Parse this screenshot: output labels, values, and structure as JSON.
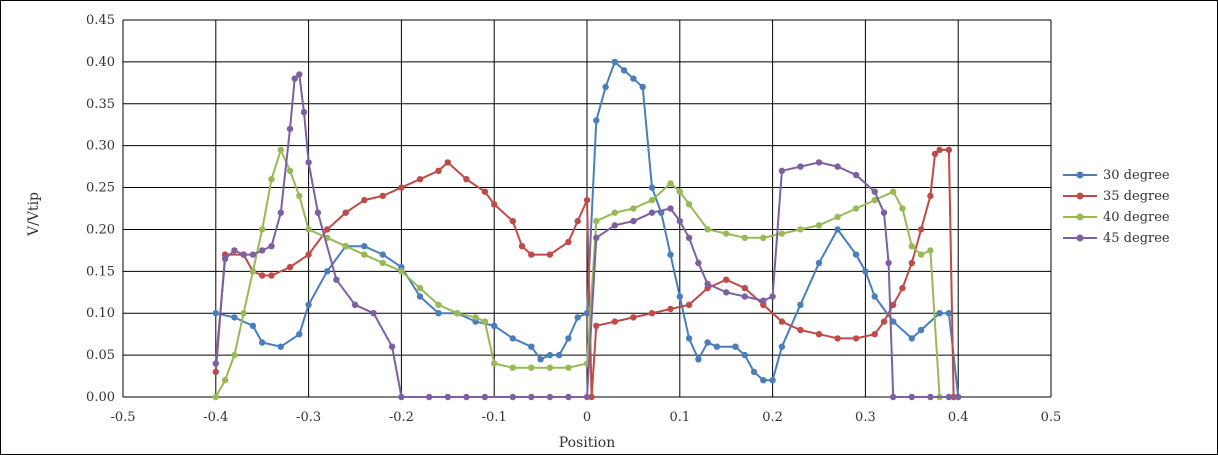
{
  "chart_data": {
    "type": "line",
    "title": "",
    "xlabel": "Position",
    "ylabel": "V/Vtip",
    "xlim": [
      -0.5,
      0.5
    ],
    "ylim": [
      0,
      0.45
    ],
    "grid": true,
    "legend_position": "right",
    "x_tick_labels": [
      "-0.5",
      "-0.4",
      "-0.3",
      "-0.2",
      "-0.1",
      "0",
      "0.1",
      "0.2",
      "0.3",
      "0.4",
      "0.5"
    ],
    "y_tick_labels": [
      "0.00",
      "0.05",
      "0.10",
      "0.15",
      "0.20",
      "0.25",
      "0.30",
      "0.35",
      "0.40",
      "0.45"
    ],
    "series": [
      {
        "name": "30 degree",
        "color": "#4a7ebb",
        "points": [
          [
            -0.4,
            0.1
          ],
          [
            -0.38,
            0.095
          ],
          [
            -0.36,
            0.085
          ],
          [
            -0.35,
            0.065
          ],
          [
            -0.33,
            0.06
          ],
          [
            -0.31,
            0.075
          ],
          [
            -0.3,
            0.11
          ],
          [
            -0.28,
            0.15
          ],
          [
            -0.26,
            0.18
          ],
          [
            -0.24,
            0.18
          ],
          [
            -0.22,
            0.17
          ],
          [
            -0.2,
            0.155
          ],
          [
            -0.18,
            0.12
          ],
          [
            -0.16,
            0.1
          ],
          [
            -0.14,
            0.1
          ],
          [
            -0.12,
            0.09
          ],
          [
            -0.1,
            0.085
          ],
          [
            -0.08,
            0.07
          ],
          [
            -0.06,
            0.06
          ],
          [
            -0.05,
            0.045
          ],
          [
            -0.04,
            0.05
          ],
          [
            -0.03,
            0.05
          ],
          [
            -0.02,
            0.07
          ],
          [
            -0.01,
            0.095
          ],
          [
            0.0,
            0.1
          ],
          [
            0.01,
            0.33
          ],
          [
            0.02,
            0.37
          ],
          [
            0.03,
            0.4
          ],
          [
            0.04,
            0.39
          ],
          [
            0.05,
            0.38
          ],
          [
            0.06,
            0.37
          ],
          [
            0.07,
            0.25
          ],
          [
            0.08,
            0.22
          ],
          [
            0.09,
            0.17
          ],
          [
            0.1,
            0.12
          ],
          [
            0.11,
            0.07
          ],
          [
            0.12,
            0.045
          ],
          [
            0.13,
            0.065
          ],
          [
            0.14,
            0.06
          ],
          [
            0.16,
            0.06
          ],
          [
            0.17,
            0.05
          ],
          [
            0.18,
            0.03
          ],
          [
            0.19,
            0.02
          ],
          [
            0.2,
            0.02
          ],
          [
            0.21,
            0.06
          ],
          [
            0.23,
            0.11
          ],
          [
            0.25,
            0.16
          ],
          [
            0.27,
            0.2
          ],
          [
            0.29,
            0.17
          ],
          [
            0.3,
            0.15
          ],
          [
            0.31,
            0.12
          ],
          [
            0.33,
            0.09
          ],
          [
            0.35,
            0.07
          ],
          [
            0.36,
            0.08
          ],
          [
            0.38,
            0.1
          ],
          [
            0.39,
            0.1
          ],
          [
            0.4,
            0.0
          ]
        ]
      },
      {
        "name": "35 degree",
        "color": "#be4b48",
        "points": [
          [
            -0.4,
            0.03
          ],
          [
            -0.39,
            0.17
          ],
          [
            -0.37,
            0.17
          ],
          [
            -0.36,
            0.15
          ],
          [
            -0.35,
            0.145
          ],
          [
            -0.34,
            0.145
          ],
          [
            -0.32,
            0.155
          ],
          [
            -0.3,
            0.17
          ],
          [
            -0.28,
            0.2
          ],
          [
            -0.26,
            0.22
          ],
          [
            -0.24,
            0.235
          ],
          [
            -0.22,
            0.24
          ],
          [
            -0.2,
            0.25
          ],
          [
            -0.18,
            0.26
          ],
          [
            -0.16,
            0.27
          ],
          [
            -0.15,
            0.28
          ],
          [
            -0.13,
            0.26
          ],
          [
            -0.11,
            0.245
          ],
          [
            -0.1,
            0.23
          ],
          [
            -0.08,
            0.21
          ],
          [
            -0.07,
            0.18
          ],
          [
            -0.06,
            0.17
          ],
          [
            -0.04,
            0.17
          ],
          [
            -0.02,
            0.185
          ],
          [
            -0.01,
            0.21
          ],
          [
            0.0,
            0.235
          ],
          [
            0.005,
            0.0
          ],
          [
            0.01,
            0.085
          ],
          [
            0.03,
            0.09
          ],
          [
            0.05,
            0.095
          ],
          [
            0.07,
            0.1
          ],
          [
            0.09,
            0.105
          ],
          [
            0.11,
            0.11
          ],
          [
            0.13,
            0.13
          ],
          [
            0.15,
            0.14
          ],
          [
            0.17,
            0.13
          ],
          [
            0.19,
            0.11
          ],
          [
            0.21,
            0.09
          ],
          [
            0.23,
            0.08
          ],
          [
            0.25,
            0.075
          ],
          [
            0.27,
            0.07
          ],
          [
            0.29,
            0.07
          ],
          [
            0.31,
            0.075
          ],
          [
            0.32,
            0.09
          ],
          [
            0.33,
            0.11
          ],
          [
            0.34,
            0.13
          ],
          [
            0.35,
            0.16
          ],
          [
            0.36,
            0.2
          ],
          [
            0.37,
            0.24
          ],
          [
            0.375,
            0.29
          ],
          [
            0.38,
            0.295
          ],
          [
            0.39,
            0.295
          ],
          [
            0.395,
            0.0
          ]
        ]
      },
      {
        "name": "40 degree",
        "color": "#98b954",
        "points": [
          [
            -0.4,
            0.0
          ],
          [
            -0.39,
            0.02
          ],
          [
            -0.38,
            0.05
          ],
          [
            -0.37,
            0.1
          ],
          [
            -0.36,
            0.15
          ],
          [
            -0.35,
            0.2
          ],
          [
            -0.34,
            0.26
          ],
          [
            -0.33,
            0.295
          ],
          [
            -0.32,
            0.27
          ],
          [
            -0.31,
            0.24
          ],
          [
            -0.3,
            0.2
          ],
          [
            -0.28,
            0.19
          ],
          [
            -0.26,
            0.18
          ],
          [
            -0.24,
            0.17
          ],
          [
            -0.22,
            0.16
          ],
          [
            -0.2,
            0.15
          ],
          [
            -0.18,
            0.13
          ],
          [
            -0.16,
            0.11
          ],
          [
            -0.14,
            0.1
          ],
          [
            -0.12,
            0.095
          ],
          [
            -0.11,
            0.09
          ],
          [
            -0.1,
            0.04
          ],
          [
            -0.08,
            0.035
          ],
          [
            -0.06,
            0.035
          ],
          [
            -0.04,
            0.035
          ],
          [
            -0.02,
            0.035
          ],
          [
            0.0,
            0.04
          ],
          [
            0.01,
            0.21
          ],
          [
            0.03,
            0.22
          ],
          [
            0.05,
            0.225
          ],
          [
            0.07,
            0.235
          ],
          [
            0.09,
            0.255
          ],
          [
            0.1,
            0.245
          ],
          [
            0.11,
            0.23
          ],
          [
            0.13,
            0.2
          ],
          [
            0.15,
            0.195
          ],
          [
            0.17,
            0.19
          ],
          [
            0.19,
            0.19
          ],
          [
            0.21,
            0.195
          ],
          [
            0.23,
            0.2
          ],
          [
            0.25,
            0.205
          ],
          [
            0.27,
            0.215
          ],
          [
            0.29,
            0.225
          ],
          [
            0.31,
            0.235
          ],
          [
            0.33,
            0.245
          ],
          [
            0.34,
            0.225
          ],
          [
            0.35,
            0.18
          ],
          [
            0.36,
            0.17
          ],
          [
            0.37,
            0.175
          ],
          [
            0.38,
            0.0
          ]
        ]
      },
      {
        "name": "45 degree",
        "color": "#7d60a0",
        "points": [
          [
            -0.4,
            0.04
          ],
          [
            -0.39,
            0.165
          ],
          [
            -0.38,
            0.175
          ],
          [
            -0.37,
            0.17
          ],
          [
            -0.36,
            0.17
          ],
          [
            -0.35,
            0.175
          ],
          [
            -0.34,
            0.18
          ],
          [
            -0.33,
            0.22
          ],
          [
            -0.32,
            0.32
          ],
          [
            -0.315,
            0.38
          ],
          [
            -0.31,
            0.385
          ],
          [
            -0.305,
            0.34
          ],
          [
            -0.3,
            0.28
          ],
          [
            -0.29,
            0.22
          ],
          [
            -0.27,
            0.14
          ],
          [
            -0.25,
            0.11
          ],
          [
            -0.23,
            0.1
          ],
          [
            -0.21,
            0.06
          ],
          [
            -0.2,
            0.0
          ],
          [
            -0.17,
            0.0
          ],
          [
            -0.15,
            0.0
          ],
          [
            -0.13,
            0.0
          ],
          [
            -0.11,
            0.0
          ],
          [
            -0.08,
            0.0
          ],
          [
            -0.06,
            0.0
          ],
          [
            -0.04,
            0.0
          ],
          [
            -0.02,
            0.0
          ],
          [
            0.0,
            0.0
          ],
          [
            0.01,
            0.19
          ],
          [
            0.03,
            0.205
          ],
          [
            0.05,
            0.21
          ],
          [
            0.07,
            0.22
          ],
          [
            0.09,
            0.225
          ],
          [
            0.1,
            0.21
          ],
          [
            0.11,
            0.19
          ],
          [
            0.12,
            0.16
          ],
          [
            0.13,
            0.135
          ],
          [
            0.15,
            0.125
          ],
          [
            0.17,
            0.12
          ],
          [
            0.19,
            0.115
          ],
          [
            0.2,
            0.12
          ],
          [
            0.21,
            0.27
          ],
          [
            0.23,
            0.275
          ],
          [
            0.25,
            0.28
          ],
          [
            0.27,
            0.275
          ],
          [
            0.29,
            0.265
          ],
          [
            0.31,
            0.245
          ],
          [
            0.32,
            0.22
          ],
          [
            0.325,
            0.16
          ],
          [
            0.33,
            0.0
          ],
          [
            0.35,
            0.0
          ],
          [
            0.37,
            0.0
          ],
          [
            0.39,
            0.0
          ],
          [
            0.4,
            0.0
          ]
        ]
      }
    ]
  }
}
